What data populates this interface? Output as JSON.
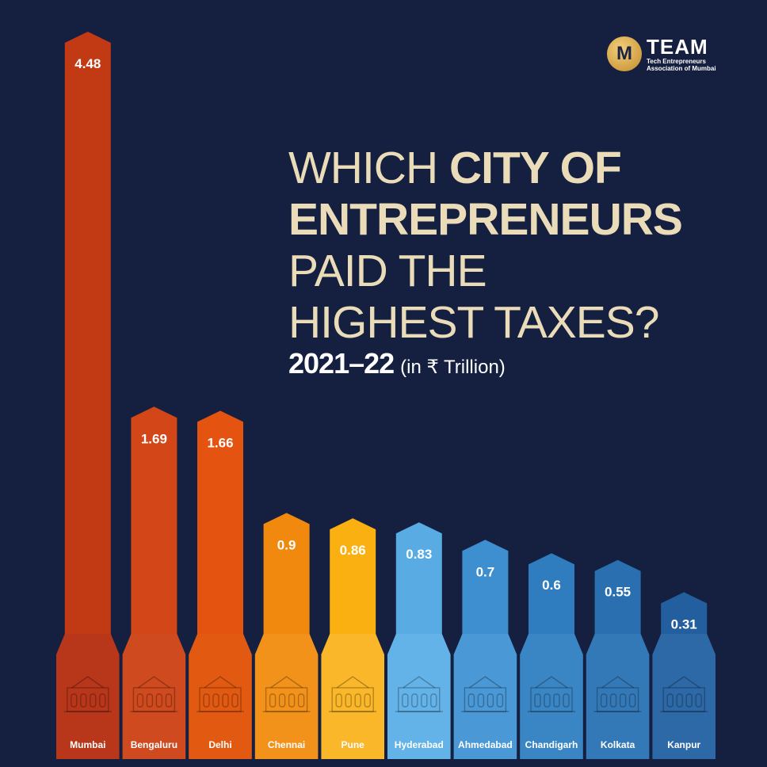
{
  "brand": {
    "name": "TEAM",
    "tagline_1": "Tech Entrepreneurs",
    "tagline_2": "Association of Mumbai",
    "mark": "M"
  },
  "header": {
    "title_line1_thin": "WHICH ",
    "title_line1_bold": "CITY OF",
    "title_line2_bold": "ENTREPRENEURS",
    "title_line3_thin": "PAID THE",
    "title_line4_thin": "HIGHEST TAXES?",
    "year": "2021–22",
    "unit": "(in ₹ Trillion)"
  },
  "chart_data": {
    "type": "bar",
    "categories": [
      "Mumbai",
      "Bengaluru",
      "Delhi",
      "Chennai",
      "Pune",
      "Hyderabad",
      "Ahmedabad",
      "Chandigarh",
      "Kolkata",
      "Kanpur"
    ],
    "values": [
      4.48,
      1.69,
      1.66,
      0.9,
      0.86,
      0.83,
      0.7,
      0.6,
      0.55,
      0.31
    ],
    "value_labels": [
      "4.48",
      "1.69",
      "1.66",
      "0.9",
      "0.86",
      "0.83",
      "0.7",
      "0.6",
      "0.55",
      "0.31"
    ],
    "bar_colors": [
      "#c23a14",
      "#d34617",
      "#e4530f",
      "#f2890f",
      "#fbb012",
      "#58abe3",
      "#3d8fcf",
      "#2f7dbe",
      "#2a70b0",
      "#235f9e"
    ],
    "base_colors": [
      "#b8361a",
      "#cf4a1e",
      "#e25a12",
      "#f3921a",
      "#fbb72a",
      "#63b3e8",
      "#4a98d5",
      "#3a86c4",
      "#3479b7",
      "#2d69a6"
    ],
    "icons": [
      "gateway-of-india-icon",
      "vidhana-soudha-icon",
      "india-gate-icon",
      "central-station-icon",
      "shaniwar-wada-icon",
      "charminar-icon",
      "sidi-saiyyed-mosque-icon",
      "open-hand-monument-icon",
      "victoria-memorial-icon",
      "jk-temple-icon"
    ],
    "ylim": [
      0,
      4.48
    ],
    "grid": false,
    "legend": "none"
  }
}
